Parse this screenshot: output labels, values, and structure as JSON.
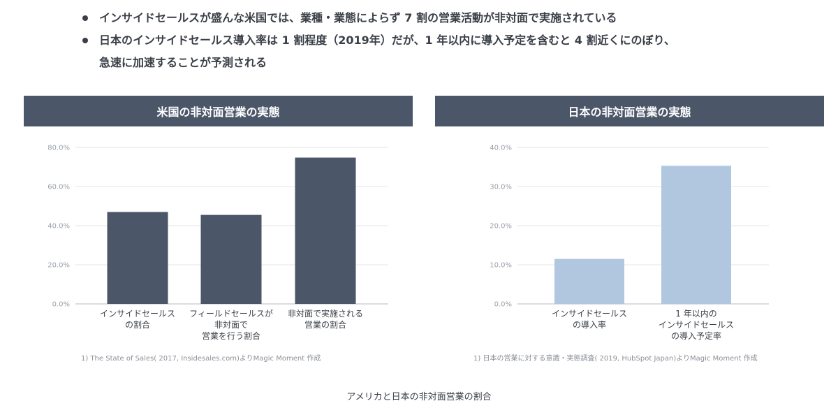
{
  "bullets": [
    "インサイドセールスが盛んな米国では、業種・業態によらず 7 割の営業活動が非対面で実施されている",
    "日本のインサイドセールス導入率は 1 割程度（2019年）だが、1 年以内に導入予定を含むと 4 割近くにのぼり、",
    "急速に加速することが予測される"
  ],
  "caption": "アメリカと日本の非対面営業の割合",
  "colors": {
    "header_bg": "#4b5668",
    "us_bar": "#4b5668",
    "jp_bar": "#b0c7df",
    "grid": "#e2e4e8",
    "axis_text": "#9aa0a8"
  },
  "chart_data": [
    {
      "type": "bar",
      "title": "米国の非対面営業の実態",
      "categories": [
        [
          "インサイドセールス",
          "の割合"
        ],
        [
          "フィールドセールスが",
          "非対面で",
          "営業を行う割合"
        ],
        [
          "非対面で実施される",
          "営業の割合"
        ]
      ],
      "values": [
        47.0,
        45.5,
        74.8
      ],
      "ylim": [
        0,
        80
      ],
      "yticks": [
        "0.0%",
        "20.0%",
        "40.0%",
        "60.0%",
        "80.0%"
      ],
      "grid": true,
      "source": "1) The State of Sales( 2017, Insidesales.com)よりMagic Moment 作成"
    },
    {
      "type": "bar",
      "title": "日本の非対面営業の実態",
      "categories": [
        [
          "インサイドセールス",
          "の導入率"
        ],
        [
          "1 年以内の",
          "インサイドセールス",
          "の導入予定率"
        ]
      ],
      "values": [
        11.5,
        35.3
      ],
      "ylim": [
        0,
        40
      ],
      "yticks": [
        "0.0%",
        "10.0%",
        "20.0%",
        "30.0%",
        "40.0%"
      ],
      "grid": true,
      "source": "1) 日本の営業に対する意識・実態調査( 2019, HubSpot Japan)よりMagic Moment 作成"
    }
  ]
}
